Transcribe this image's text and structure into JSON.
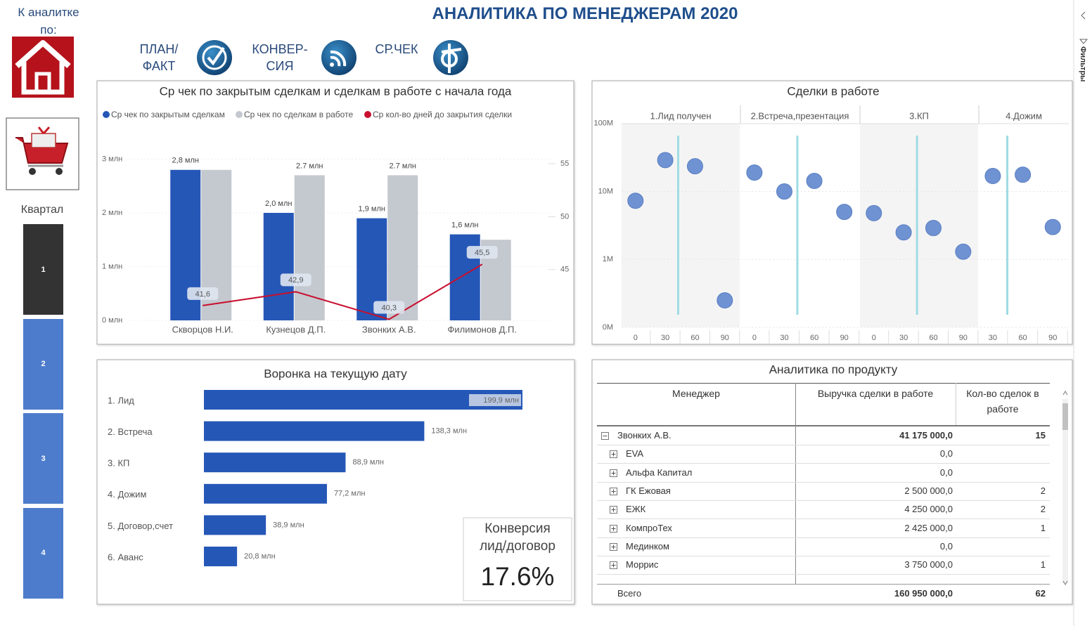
{
  "header": {
    "back_label": "К аналитке по:",
    "title": "АНАЛИТИКА ПО МЕНЕДЖЕРАМ 2020"
  },
  "nav": [
    "ПЛАН/\nФАКТ",
    "КОНВЕР-\nСИЯ",
    "СР.ЧЕК"
  ],
  "filters_label": "Фильтры",
  "quarter": {
    "label": "Квартал",
    "items": [
      "1",
      "2",
      "3",
      "4"
    ],
    "selected": "1"
  },
  "chart_data": [
    {
      "type": "bar",
      "title": "Ср чек по закрытым сделкам и сделкам в работе с начала года",
      "categories": [
        "Скворцов Н.И.",
        "Кузнецов Д.П.",
        "Звонких А.В.",
        "Филимонов Д.П."
      ],
      "series": [
        {
          "name": "Ср чек по закрытым сделкам",
          "color": "#2557b7",
          "values": [
            2.8,
            2.0,
            1.9,
            1.6
          ],
          "value_labels": [
            "2,8 млн",
            "2,0 млн",
            "1,9 млн",
            "1,6 млн"
          ]
        },
        {
          "name": "Ср чек по сделкам в работе",
          "color": "#c4c8cf",
          "values": [
            2.8,
            2.7,
            2.7,
            1.5
          ],
          "value_labels": [
            null,
            "2.7 млн",
            "2.7 млн",
            null
          ]
        },
        {
          "name": "Ср кол-во дней до закрытия сделки",
          "type": "line",
          "axis": "y2",
          "color": "#c8102e",
          "values": [
            41.6,
            42.9,
            40.3,
            45.5
          ],
          "value_labels": [
            "41,6",
            "42,9",
            "40,3",
            "45,5"
          ]
        }
      ],
      "ylim": [
        0,
        3.15
      ],
      "yticks": [
        {
          "value": 0,
          "label": "0 млн"
        },
        {
          "value": 1,
          "label": "1 млн"
        },
        {
          "value": 2,
          "label": "2 млн"
        },
        {
          "value": 3,
          "label": "3 млн"
        }
      ],
      "y2lim": [
        40.2,
        56.2
      ],
      "y2ticks": [
        45,
        50,
        55
      ],
      "legend": "top",
      "grid": true
    },
    {
      "type": "scatter",
      "title": "Сделки в работе",
      "log_y": true,
      "color": "#6f92d2",
      "reference_color": "#9fdce3",
      "ylim": [
        0.1,
        185
      ],
      "yticks": [
        {
          "value": 0.1,
          "label": "0M"
        },
        {
          "value": 1,
          "label": "1M"
        },
        {
          "value": 10,
          "label": "10M"
        },
        {
          "value": 100,
          "label": "100M"
        }
      ],
      "panels": [
        {
          "name": "1.Лид получен",
          "xlim": [
            -14,
            105
          ],
          "xticks": [
            0,
            30,
            60,
            90
          ],
          "x": [
            0,
            30,
            60,
            90
          ],
          "values": [
            7.3,
            29,
            23.5,
            0.25
          ],
          "reference_x": 43
        },
        {
          "name": "2.Встреча,презентация",
          "xlim": [
            -14,
            105
          ],
          "xticks": [
            0,
            30,
            60,
            90
          ],
          "x": [
            0,
            30,
            60,
            90
          ],
          "values": [
            19,
            10,
            14.3,
            5.0
          ],
          "reference_x": 43
        },
        {
          "name": "3.КП",
          "xlim": [
            -14,
            105
          ],
          "xticks": [
            0,
            30,
            60,
            90
          ],
          "x": [
            0,
            30,
            60,
            90
          ],
          "values": [
            4.8,
            2.5,
            2.9,
            1.3
          ],
          "reference_x": 43.5
        },
        {
          "name": "4.Дожим",
          "xlim": [
            16,
            106
          ],
          "xticks": [
            30,
            60,
            90
          ],
          "x": [
            30,
            60,
            90
          ],
          "values": [
            16.9,
            17.7,
            3.0
          ],
          "reference_x": 44.5
        }
      ]
    },
    {
      "type": "hbar",
      "title": "Воронка на текущую дату",
      "color": "#2557b7",
      "categories": [
        "1. Лид",
        "2. Встреча",
        "3. КП",
        "4. Дожим",
        "5. Договор,счет",
        "6. Аванс"
      ],
      "values": [
        199.9,
        138.3,
        88.9,
        77.2,
        38.9,
        20.8
      ],
      "value_labels": [
        "199,9 млн",
        "138,3 млн",
        "88,9 млн",
        "77,2 млн",
        "38,9 млн",
        "20,8 млн"
      ]
    }
  ],
  "kpi": {
    "title": "Конверсия лид/договор",
    "value": "17.6%"
  },
  "table": {
    "title": "Аналитика по продукту",
    "columns": [
      "Менеджер",
      "Выручка сделки в работе",
      "Кол-во сделок в работе"
    ],
    "rows": [
      {
        "label": "Звонких А.В.",
        "revenue": "41 175 000,0",
        "count": "15",
        "level": 0
      },
      {
        "label": "EVA",
        "revenue": "0,0",
        "count": null,
        "level": 1
      },
      {
        "label": "Альфа Капитал",
        "revenue": "0,0",
        "count": null,
        "level": 1
      },
      {
        "label": "ГК Ежовая",
        "revenue": "2 500 000,0",
        "count": "2",
        "level": 1
      },
      {
        "label": "ЕЖК",
        "revenue": "4 250 000,0",
        "count": "2",
        "level": 1
      },
      {
        "label": "КомпроТех",
        "revenue": "2 425 000,0",
        "count": "1",
        "level": 1
      },
      {
        "label": "Мединком",
        "revenue": "0,0",
        "count": null,
        "level": 1
      },
      {
        "label": "Моррис",
        "revenue": "3 750 000,0",
        "count": "1",
        "level": 1
      }
    ],
    "total": {
      "label": "Всего",
      "revenue": "160 950 000,0",
      "count": "62"
    }
  }
}
